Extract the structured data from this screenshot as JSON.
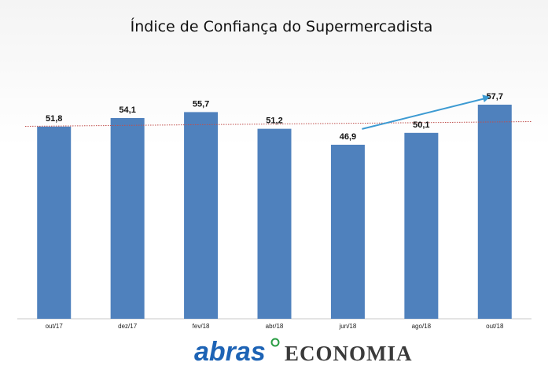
{
  "chart_data": {
    "type": "bar",
    "title": "Índice de Confiança do Supermercadista",
    "categories": [
      "out/17",
      "dez/17",
      "fev/18",
      "abr/18",
      "jun/18",
      "ago/18",
      "out/18"
    ],
    "values": [
      51.8,
      54.1,
      55.7,
      51.2,
      46.9,
      50.1,
      57.7
    ],
    "data_labels": [
      "51,8",
      "54,1",
      "55,7",
      "51,2",
      "46,9",
      "50,1",
      "57,7"
    ],
    "ylim": [
      0,
      70
    ],
    "reference_line": 52.5,
    "trend_arrow": {
      "from_category": "jun/18",
      "to_category": "out/18"
    },
    "grid": false,
    "legend": "none",
    "colors": {
      "bar": "#4f81bd",
      "reference_line": "#c0504d",
      "arrow": "#3c9ad2"
    }
  },
  "branding": {
    "logo_text": "abras",
    "subtitle_text": "ECONOMIA"
  }
}
